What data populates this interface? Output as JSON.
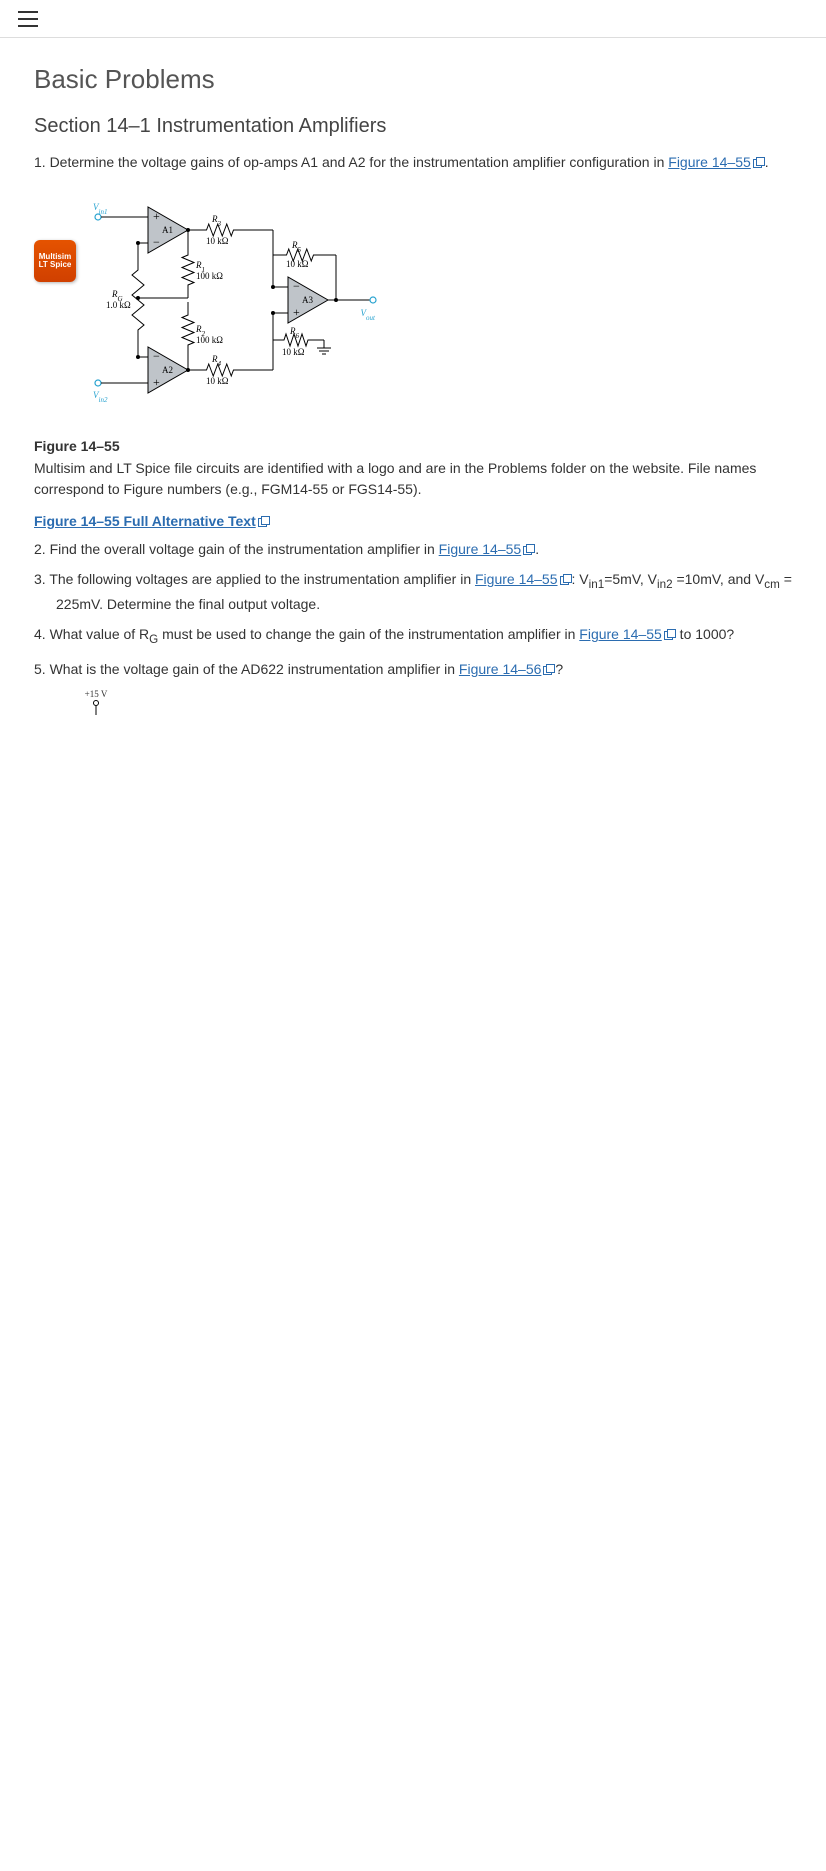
{
  "header": {
    "menu_icon": "hamburger"
  },
  "title": "Basic Problems",
  "section_title": "Section 14–1 Instrumentation Amplifiers",
  "questions": {
    "q1_pre": "1. Determine the voltage gains of op-amps A1 and A2 for the instrumentation amplifier configuration in ",
    "q1_link": "Figure 14–55",
    "q1_post": ".",
    "q2_pre": "2. Find the overall voltage gain of the instrumentation amplifier in ",
    "q2_link": "Figure 14–55",
    "q2_post": ".",
    "q3_pre": "3. The following voltages are applied to the instrumentation amplifier in ",
    "q3_link": "Figure 14–55",
    "q3_post": ": V",
    "q3_sub1": "in1",
    "q3_mid1": "=5mV, V",
    "q3_sub2": "in2",
    "q3_mid2": " =10mV, and V",
    "q3_sub3": "cm",
    "q3_end": " = 225mV. Determine the final output voltage.",
    "q4_pre": "4. What value of R",
    "q4_sub": "G",
    "q4_mid": " must be used to change the gain of the instrumentation amplifier in ",
    "q4_link": "Figure 14–55",
    "q4_post": " to 1000?",
    "q5_pre": "5. What is the voltage gain of the AD622 instrumentation amplifier in ",
    "q5_link": "Figure 14–56",
    "q5_post": "?"
  },
  "sim_badge": {
    "line1": "Multisim",
    "line2": "LT Spice"
  },
  "figure_label": "Figure 14–55",
  "figure_desc": "Multisim and LT Spice file circuits are identified with a logo and are in the Problems folder on the website. File names correspond to Figure numbers (e.g., FGM14-55 or FGS14-55).",
  "alt_text_link": "Figure 14–55 Full Alternative Text",
  "circuit": {
    "background_color": "#ffffff",
    "wire_color": "#000000",
    "wire_width": 1,
    "amp_fill": "#bfc4c9",
    "amp_stroke": "#000000",
    "term_color": "#29a3d0",
    "term_radius": 3,
    "label_color": "#000000",
    "term_label_color": "#29a3d0",
    "font_size_val": 9,
    "font_size_sub": 7,
    "font_size_sign": 12,
    "RG_val": "1.0 kΩ",
    "R1_val": "100 kΩ",
    "R2_val": "100 kΩ",
    "R3_val": "10 kΩ",
    "R4_val": "10 kΩ",
    "R5_val": "10 kΩ",
    "R6_val": "10 kΩ",
    "Vin1": "Vin1",
    "Vin2": "Vin2",
    "Vout": "Vout",
    "A1": "A1",
    "A2": "A2",
    "A3": "A3"
  },
  "small_diag": {
    "top_label": "+15 V"
  }
}
